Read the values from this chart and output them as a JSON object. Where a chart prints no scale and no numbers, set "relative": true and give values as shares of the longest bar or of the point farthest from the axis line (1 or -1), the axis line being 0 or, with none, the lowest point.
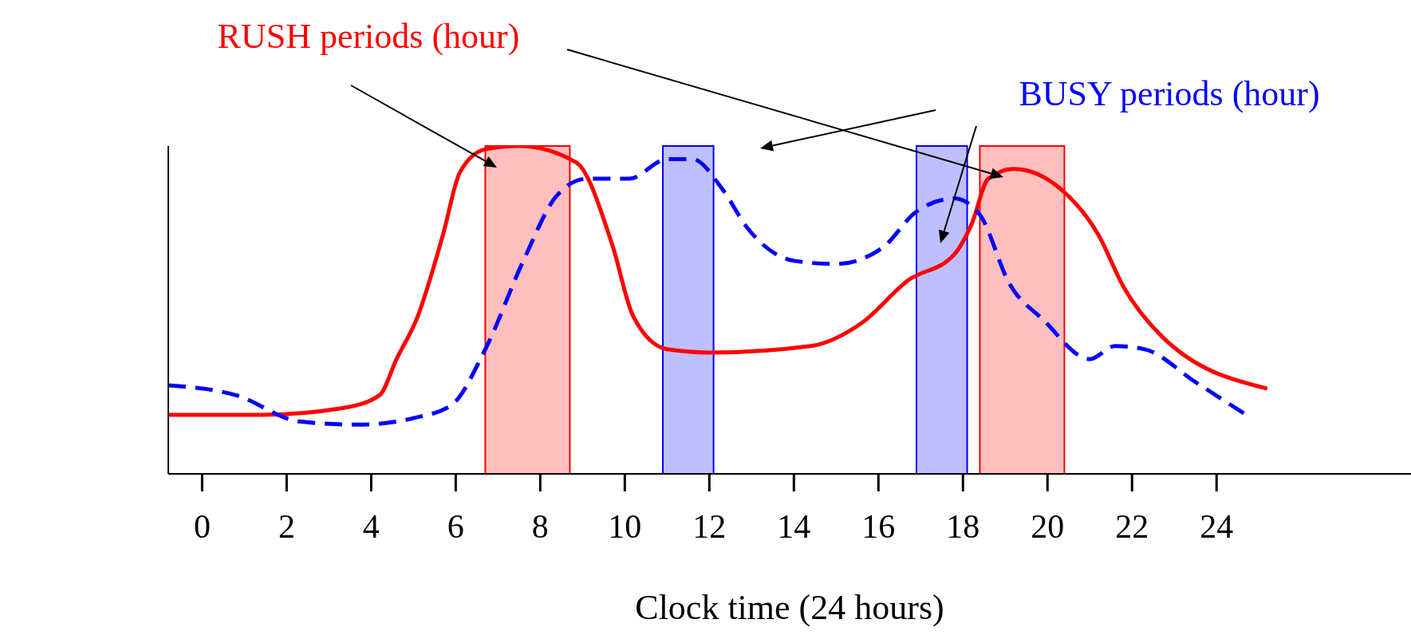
{
  "chart_data": {
    "type": "line",
    "relative": true,
    "xlabel": "Clock time (24 hours)",
    "xlim": [
      -0.8,
      28.6
    ],
    "xticks": [
      0,
      2,
      4,
      6,
      8,
      10,
      12,
      14,
      16,
      18,
      20,
      22,
      24
    ],
    "marker": "none",
    "annotations": [
      "RUSH periods (hour)",
      "BUSY periods (hour)"
    ],
    "bands": [
      {
        "axis": "x",
        "from": 6.7,
        "to": 8.7,
        "color": "#ff0000"
      },
      {
        "axis": "x",
        "from": 18.4,
        "to": 20.4,
        "color": "#ff0000"
      },
      {
        "axis": "x",
        "from": 10.9,
        "to": 12.1,
        "color": "#0000ff"
      },
      {
        "axis": "x",
        "from": 16.9,
        "to": 18.1,
        "color": "#0000ff"
      }
    ],
    "series": [
      {
        "color": "#ff0000",
        "line_style": "solid",
        "x": [
          -0.8,
          1.4,
          3.3,
          4.2,
          4.6,
          5.1,
          5.7,
          6.1,
          6.7,
          7.5,
          8.85,
          9.7,
          10.2,
          11.0,
          12.0,
          14.4,
          15.6,
          16.7,
          17.8,
          18.2,
          18.6,
          19.2,
          20.3,
          21.2,
          21.8,
          22.7,
          25.2
        ],
        "values": [
          0.18,
          0.18,
          0.2,
          0.24,
          0.35,
          0.48,
          0.73,
          0.92,
          0.99,
          1.0,
          0.95,
          0.7,
          0.48,
          0.38,
          0.37,
          0.39,
          0.46,
          0.59,
          0.67,
          0.76,
          0.9,
          0.93,
          0.87,
          0.73,
          0.57,
          0.42,
          0.26
        ]
      },
      {
        "color": "#0000ff",
        "line_style": "dashed",
        "x": [
          -0.8,
          0.8,
          2.3,
          3.7,
          5.0,
          5.9,
          6.7,
          7.6,
          8.4,
          9.1,
          10.1,
          11.0,
          11.6,
          12.3,
          12.9,
          14.0,
          15.0,
          16.1,
          16.9,
          17.8,
          18.4,
          19.1,
          19.9,
          21.0,
          21.6,
          22.3,
          23.5,
          24.7
        ],
        "values": [
          0.27,
          0.24,
          0.16,
          0.15,
          0.17,
          0.21,
          0.38,
          0.65,
          0.85,
          0.9,
          0.9,
          0.96,
          0.96,
          0.87,
          0.75,
          0.65,
          0.64,
          0.69,
          0.8,
          0.84,
          0.79,
          0.58,
          0.47,
          0.35,
          0.39,
          0.38,
          0.28,
          0.18
        ]
      }
    ]
  }
}
